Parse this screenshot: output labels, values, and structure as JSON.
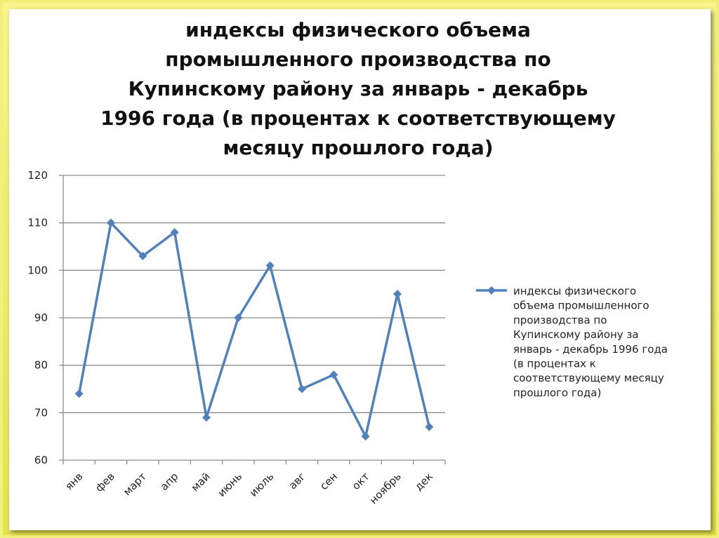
{
  "chart_data": {
    "type": "line",
    "title": "индексы физического объема промышленного производства по Купинскому району за январь - декабрь 1996 года (в процентах к соответствующему месяцу прошлого года)",
    "categories": [
      "янв",
      "фев",
      "март",
      "апр",
      "май",
      "июнь",
      "июль",
      "авг",
      "сен",
      "окт",
      "ноябрь",
      "дек"
    ],
    "series": [
      {
        "name": "индексы физического объема промышленного производства по Купинскому району за январь - декабрь 1996 года (в процентах к соответствующему месяцу прошлого года)",
        "values": [
          74,
          110,
          103,
          108,
          69,
          90,
          101,
          75,
          78,
          65,
          95,
          67
        ],
        "color": "#4f81bd"
      }
    ],
    "ylim": [
      60,
      120
    ],
    "yticks": [
      60,
      70,
      80,
      90,
      100,
      110,
      120
    ],
    "grid": true,
    "legend_position": "right",
    "legend_lines": [
      "индексы физического",
      "объема промышленного",
      "производства по",
      "Купинскому району за",
      "январь - декабрь 1996 года",
      "(в процентах к",
      "соответствующему месяцу",
      "прошлого года)"
    ],
    "title_lines": [
      "индексы физического объема",
      "промышленного производства по",
      "Купинскому району за январь - декабрь",
      "1996 года (в процентах к соответствующему",
      "месяцу прошлого года)"
    ]
  }
}
